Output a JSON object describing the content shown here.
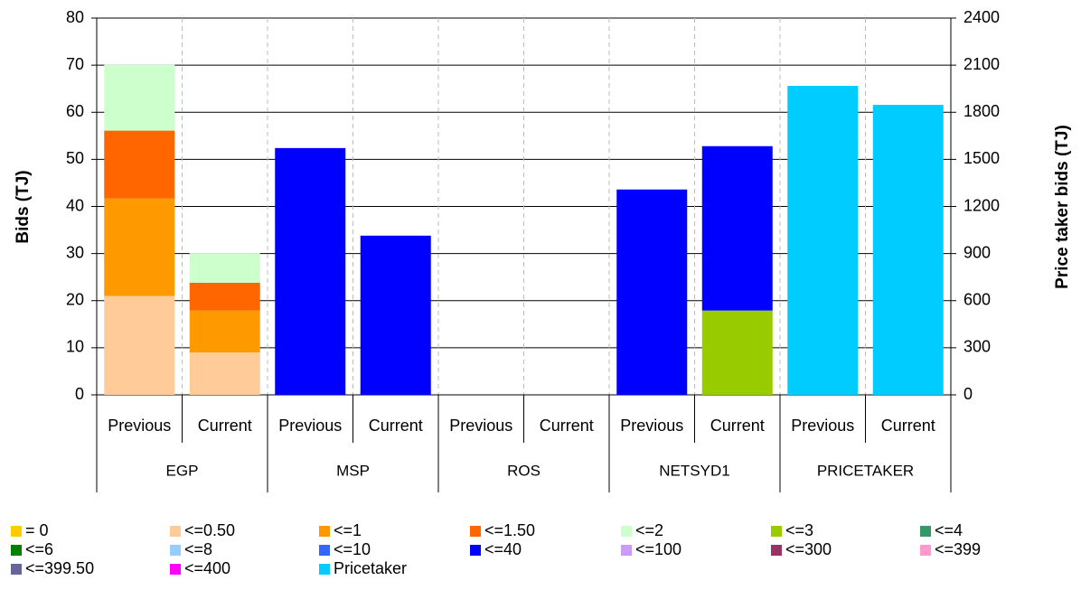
{
  "chart_data": {
    "type": "stacked-bar",
    "y_label": "Bids (TJ)",
    "y2_label": "Price taker bids (TJ)",
    "categories": [
      "Previous",
      "Current",
      "Previous",
      "Current",
      "Previous",
      "Current",
      "Previous",
      "Current",
      "Previous",
      "Current"
    ],
    "category_groups": [
      "EGP",
      "MSP",
      "ROS",
      "NETSYD1",
      "PRICETAKER"
    ],
    "ylim": [
      0,
      80
    ],
    "yticks": [
      0,
      10,
      20,
      30,
      40,
      50,
      60,
      70,
      80
    ],
    "y2lim": [
      0,
      2400
    ],
    "y2ticks": [
      0,
      300,
      600,
      900,
      1200,
      1500,
      1800,
      2100,
      2400
    ],
    "grid": true,
    "series": [
      {
        "name": "= 0",
        "color": "#ffcc00",
        "values": [
          0,
          0,
          0,
          0,
          0,
          0,
          0,
          0,
          0,
          0
        ]
      },
      {
        "name": "<=0.50",
        "color": "#ffcc99",
        "values": [
          21,
          9,
          0,
          0,
          0,
          0,
          0,
          0,
          0,
          0
        ]
      },
      {
        "name": "<=1",
        "color": "#ff9900",
        "values": [
          20.7,
          8.9,
          0,
          0,
          0,
          0,
          0,
          0,
          0,
          0
        ]
      },
      {
        "name": "<=1.50",
        "color": "#ff6600",
        "values": [
          14.4,
          5.9,
          0,
          0,
          0,
          0,
          0,
          0,
          0,
          0
        ]
      },
      {
        "name": "<=2",
        "color": "#ccffcc",
        "values": [
          14,
          6.3,
          0,
          0,
          0,
          0,
          0,
          0,
          0,
          0
        ]
      },
      {
        "name": "<=3",
        "color": "#99cc00",
        "values": [
          0,
          0,
          0,
          0,
          0,
          0,
          0,
          17.9,
          0,
          0
        ]
      },
      {
        "name": "<=4",
        "color": "#339966",
        "values": [
          0,
          0,
          0,
          0,
          0,
          0,
          0,
          0,
          0,
          0
        ]
      },
      {
        "name": "<=6",
        "color": "#008000",
        "values": [
          0,
          0,
          0,
          0,
          0,
          0,
          0,
          0,
          0,
          0
        ]
      },
      {
        "name": "<=8",
        "color": "#99ccff",
        "values": [
          0,
          0,
          0,
          0,
          0,
          0,
          0,
          0,
          0,
          0
        ]
      },
      {
        "name": "<=10",
        "color": "#3366ff",
        "values": [
          0,
          0,
          0,
          0,
          0,
          0,
          0,
          0,
          0,
          0
        ]
      },
      {
        "name": "<=40",
        "color": "#0000ff",
        "values": [
          0,
          0,
          52.4,
          33.8,
          0,
          0,
          43.6,
          34.9,
          0,
          0
        ]
      },
      {
        "name": "<=100",
        "color": "#cc99ff",
        "values": [
          0,
          0,
          0,
          0,
          0,
          0,
          0,
          0,
          0,
          0
        ]
      },
      {
        "name": "<=300",
        "color": "#993366",
        "values": [
          0,
          0,
          0,
          0,
          0,
          0,
          0,
          0,
          0,
          0
        ]
      },
      {
        "name": "<=399",
        "color": "#ff99cc",
        "values": [
          0,
          0,
          0,
          0,
          0,
          0,
          0,
          0,
          0,
          0
        ]
      },
      {
        "name": "<=399.50",
        "color": "#666699",
        "values": [
          0,
          0,
          0,
          0,
          0,
          0,
          0,
          0,
          0,
          0
        ]
      },
      {
        "name": "<=400",
        "color": "#ff00ff",
        "values": [
          0,
          0,
          0,
          0,
          0,
          0,
          0,
          0,
          0,
          0
        ]
      },
      {
        "name": "Pricetaker",
        "color": "#00ccff",
        "axis": "y2",
        "values": [
          0,
          0,
          0,
          0,
          0,
          0,
          0,
          0,
          1968,
          1847
        ]
      }
    ]
  }
}
